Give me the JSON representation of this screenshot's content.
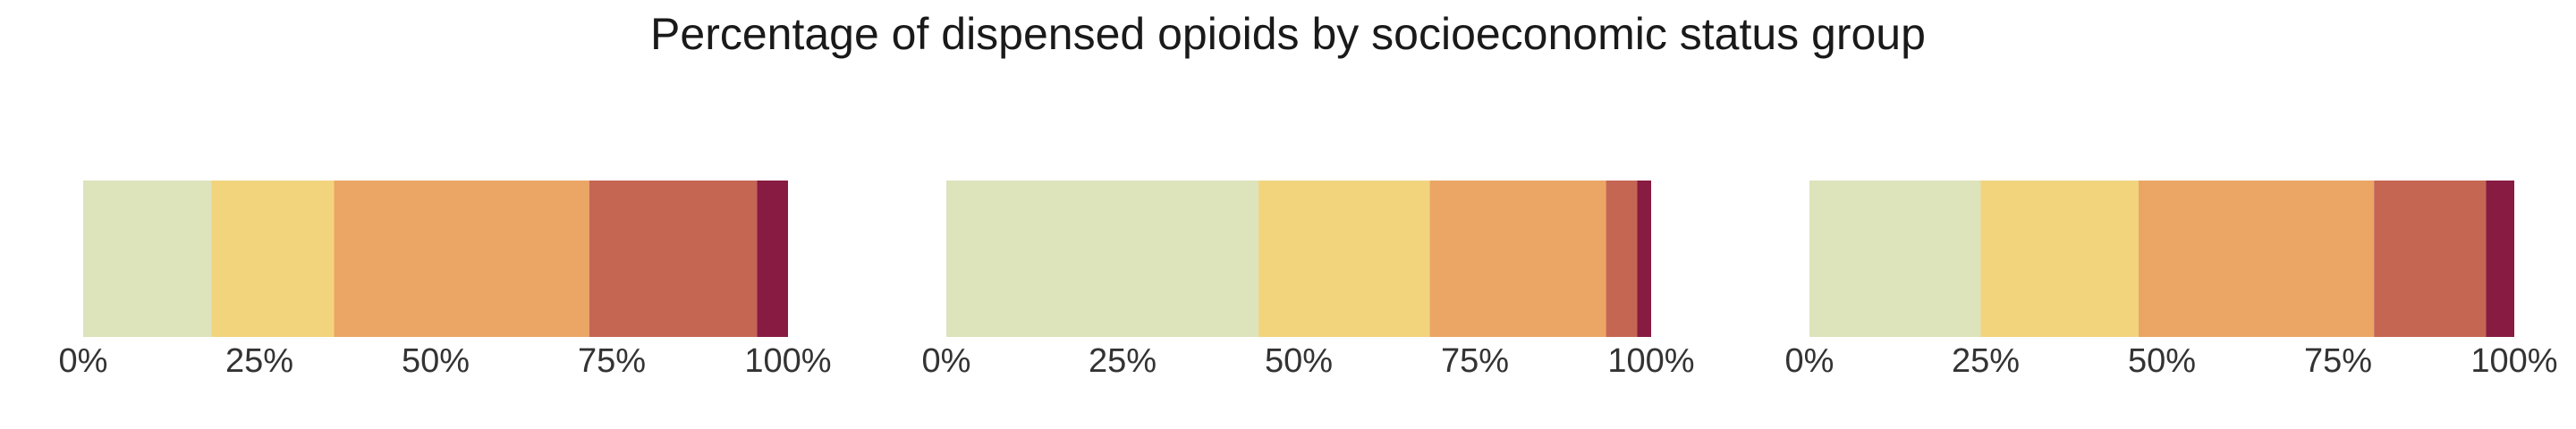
{
  "title": "Percentage of dispensed opioids by socioeconomic status group",
  "chart_data": [
    {
      "type": "bar",
      "orientation": "horizontal",
      "stacked": true,
      "title": "",
      "xlim": [
        0,
        100
      ],
      "xticks": [
        "0%",
        "25%",
        "50%",
        "75%",
        "100%"
      ],
      "segments": [
        {
          "value": 18.2,
          "color": "#dde3bb"
        },
        {
          "value": 17.4,
          "color": "#f2d47d"
        },
        {
          "value": 36.2,
          "color": "#eba565"
        },
        {
          "value": 23.8,
          "color": "#c56653"
        },
        {
          "value": 4.4,
          "color": "#881b42"
        }
      ]
    },
    {
      "type": "bar",
      "orientation": "horizontal",
      "stacked": true,
      "title": "",
      "xlim": [
        0,
        100
      ],
      "xticks": [
        "0%",
        "25%",
        "50%",
        "75%",
        "100%"
      ],
      "segments": [
        {
          "value": 44.3,
          "color": "#dde3bb"
        },
        {
          "value": 24.3,
          "color": "#f2d47d"
        },
        {
          "value": 25.0,
          "color": "#eba565"
        },
        {
          "value": 4.4,
          "color": "#c56653"
        },
        {
          "value": 2.0,
          "color": "#881b42"
        }
      ]
    },
    {
      "type": "bar",
      "orientation": "horizontal",
      "stacked": true,
      "title": "",
      "xlim": [
        0,
        100
      ],
      "xticks": [
        "0%",
        "25%",
        "50%",
        "75%",
        "100%"
      ],
      "segments": [
        {
          "value": 24.3,
          "color": "#dde3bb"
        },
        {
          "value": 22.4,
          "color": "#f2d47d"
        },
        {
          "value": 33.4,
          "color": "#eba565"
        },
        {
          "value": 15.9,
          "color": "#c56653"
        },
        {
          "value": 4.0,
          "color": "#881b42"
        }
      ]
    }
  ]
}
